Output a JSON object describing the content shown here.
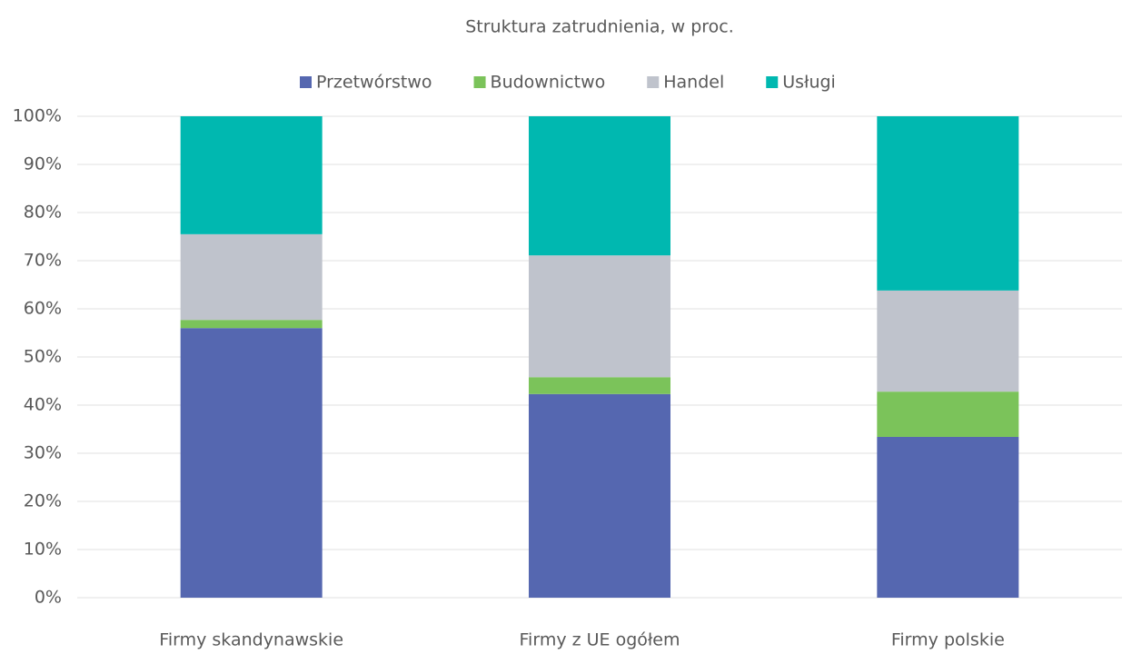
{
  "chart_data": {
    "type": "stacked_bar",
    "title": "Struktura zatrudnienia, w proc.",
    "categories": [
      "Firmy skandynawskie",
      "Firmy z UE ogółem",
      "Firmy polskie"
    ],
    "series": [
      {
        "name": "Przetwórstwo",
        "color": "#5567b0",
        "values": [
          56.0,
          42.3,
          33.4
        ]
      },
      {
        "name": "Budownictwo",
        "color": "#7bc35a",
        "values": [
          1.7,
          3.5,
          9.4
        ]
      },
      {
        "name": "Handel",
        "color": "#bfc3cc",
        "values": [
          17.8,
          25.3,
          21.0
        ]
      },
      {
        "name": "Usługi",
        "color": "#00b8b0",
        "values": [
          24.5,
          28.9,
          36.2
        ]
      }
    ],
    "ylim": [
      0,
      100
    ],
    "yticks": [
      {
        "value": 0,
        "label": "0%"
      },
      {
        "value": 10,
        "label": "10%"
      },
      {
        "value": 20,
        "label": "20%"
      },
      {
        "value": 30,
        "label": "30%"
      },
      {
        "value": 40,
        "label": "40%"
      },
      {
        "value": 50,
        "label": "50%"
      },
      {
        "value": 60,
        "label": "60%"
      },
      {
        "value": 70,
        "label": "70%"
      },
      {
        "value": 80,
        "label": "80%"
      },
      {
        "value": 90,
        "label": "90%"
      },
      {
        "value": 100,
        "label": "100%"
      }
    ],
    "grid": true,
    "legend": "top"
  }
}
